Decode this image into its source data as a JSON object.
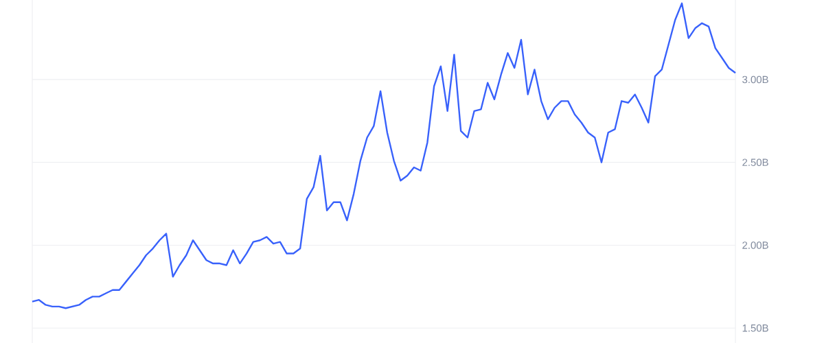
{
  "chart_data": {
    "type": "line",
    "categories": [
      null,
      null,
      null,
      null,
      null,
      null,
      null,
      null,
      null,
      null,
      null,
      null,
      null,
      null,
      null,
      null,
      null,
      null,
      null,
      null,
      null,
      null,
      null,
      null,
      null,
      null,
      null,
      null,
      null,
      null,
      null,
      null,
      null,
      null,
      null,
      null,
      null,
      null,
      null,
      null,
      null,
      null,
      null,
      null,
      null,
      null,
      null,
      null,
      null,
      null,
      null,
      null,
      null,
      null,
      null,
      null,
      null,
      null,
      null,
      null,
      null,
      null,
      null,
      null,
      null,
      null,
      null,
      null,
      null,
      null,
      null,
      null,
      null,
      null,
      null,
      null,
      null,
      null,
      null,
      null,
      null,
      null,
      null,
      null,
      null,
      null,
      null,
      null,
      null,
      null,
      null,
      null,
      null,
      null,
      null,
      null,
      null,
      null,
      null,
      null,
      null,
      null,
      null,
      null,
      null,
      null
    ],
    "series": [
      {
        "color": "#3861fb",
        "values": [
          1.66,
          1.67,
          1.64,
          1.63,
          1.63,
          1.62,
          1.63,
          1.64,
          1.67,
          1.69,
          1.69,
          1.71,
          1.73,
          1.73,
          1.78,
          1.83,
          1.88,
          1.94,
          1.98,
          2.03,
          2.07,
          1.81,
          1.88,
          1.94,
          2.03,
          1.97,
          1.91,
          1.89,
          1.89,
          1.88,
          1.97,
          1.89,
          1.95,
          2.02,
          2.03,
          2.05,
          2.01,
          2.02,
          1.95,
          1.95,
          1.98,
          2.28,
          2.35,
          2.54,
          2.21,
          2.26,
          2.26,
          2.15,
          2.31,
          2.51,
          2.65,
          2.72,
          2.93,
          2.68,
          2.51,
          2.39,
          2.42,
          2.47,
          2.45,
          2.62,
          2.96,
          3.08,
          2.81,
          3.15,
          2.69,
          2.65,
          2.81,
          2.82,
          2.98,
          2.88,
          3.03,
          3.16,
          3.07,
          3.24,
          2.91,
          3.06,
          2.87,
          2.76,
          2.83,
          2.87,
          2.87,
          2.79,
          2.74,
          2.68,
          2.65,
          2.5,
          2.68,
          2.7,
          2.87,
          2.86,
          2.91,
          2.83,
          2.74,
          3.02,
          3.06,
          3.21,
          3.36,
          3.46,
          3.25,
          3.31,
          3.34,
          3.32,
          3.19,
          3.13,
          3.07,
          3.04
        ]
      }
    ],
    "ylim": [
      1.41,
      3.48
    ],
    "yticks": [
      {
        "value": 1.5,
        "label": "1.50B"
      },
      {
        "value": 2.0,
        "label": "2.00B"
      },
      {
        "value": 2.5,
        "label": "2.50B"
      },
      {
        "value": 3.0,
        "label": "3.00B"
      }
    ],
    "grid": "y",
    "tick_labels": "y",
    "marker": "none",
    "line_style": "solid"
  }
}
